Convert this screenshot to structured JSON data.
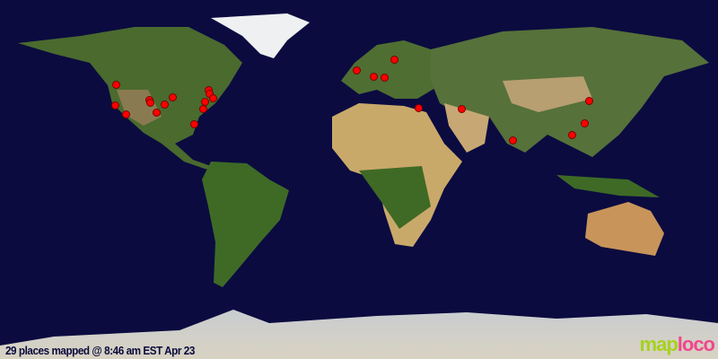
{
  "map": {
    "caption": "29 places mapped @ 8:46 am EST Apr 23",
    "logo": {
      "part1": "map",
      "part2": "loco"
    },
    "marker_color": "#ff0000",
    "ocean_color": "#0b0b40"
  }
}
